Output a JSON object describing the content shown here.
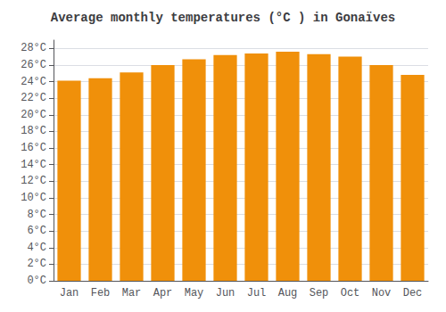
{
  "chart_data": {
    "type": "bar",
    "title": "Average monthly temperatures (°C ) in Gonaïves",
    "categories": [
      "Jan",
      "Feb",
      "Mar",
      "Apr",
      "May",
      "Jun",
      "Jul",
      "Aug",
      "Sep",
      "Oct",
      "Nov",
      "Dec"
    ],
    "values": [
      24.1,
      24.4,
      25.1,
      26.0,
      26.7,
      27.2,
      27.4,
      27.6,
      27.3,
      27.0,
      26.0,
      24.8
    ],
    "color": "#F0900A",
    "ylim": [
      0,
      29
    ],
    "yticks": [
      {
        "value": 0,
        "label": "0°C"
      },
      {
        "value": 2,
        "label": "2°C"
      },
      {
        "value": 4,
        "label": "4°C"
      },
      {
        "value": 6,
        "label": "6°C"
      },
      {
        "value": 8,
        "label": "8°C"
      },
      {
        "value": 10,
        "label": "10°C"
      },
      {
        "value": 12,
        "label": "12°C"
      },
      {
        "value": 14,
        "label": "14°C"
      },
      {
        "value": 16,
        "label": "16°C"
      },
      {
        "value": 18,
        "label": "18°C"
      },
      {
        "value": 20,
        "label": "20°C"
      },
      {
        "value": 22,
        "label": "22°C"
      },
      {
        "value": 24,
        "label": "24°C"
      },
      {
        "value": 26,
        "label": "26°C"
      },
      {
        "value": 28,
        "label": "28°C"
      }
    ],
    "grid": true
  }
}
